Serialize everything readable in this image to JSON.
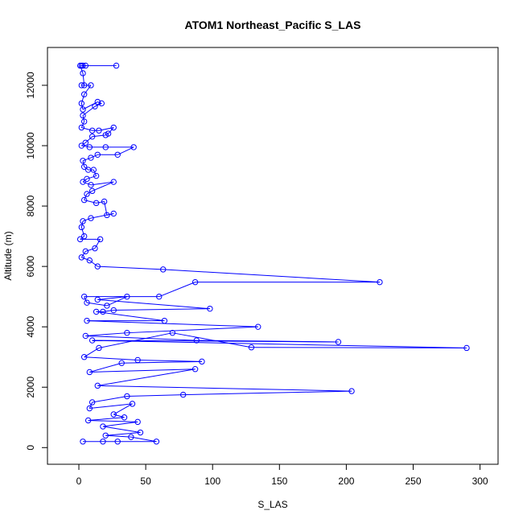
{
  "chart_data": {
    "type": "line",
    "title": "ATOM1 Northeast_Pacific S_LAS",
    "xlabel": "S_LAS",
    "ylabel": "Altitude (m)",
    "xlim": [
      -10,
      300
    ],
    "ylim": [
      0,
      12700
    ],
    "xticks": [
      0,
      50,
      100,
      150,
      200,
      250,
      300
    ],
    "yticks": [
      0,
      2000,
      4000,
      6000,
      8000,
      10000,
      12000
    ],
    "grid": false,
    "legend": "none",
    "marker": "open-circle",
    "series_color": "#0000ff",
    "series": [
      {
        "points": [
          [
            28,
            12650
          ],
          [
            5,
            12650
          ],
          [
            3,
            12650
          ],
          [
            2,
            12650
          ],
          [
            1,
            12650
          ],
          [
            3,
            12400
          ],
          [
            4,
            12000
          ],
          [
            2,
            12000
          ],
          [
            9,
            12000
          ],
          [
            4,
            11700
          ],
          [
            2,
            11400
          ],
          [
            3,
            11200
          ],
          [
            14,
            11450
          ],
          [
            17,
            11400
          ],
          [
            12,
            11300
          ],
          [
            3,
            11000
          ],
          [
            4,
            10800
          ],
          [
            2,
            10600
          ],
          [
            10,
            10500
          ],
          [
            15,
            10500
          ],
          [
            26,
            10600
          ],
          [
            22,
            10400
          ],
          [
            20,
            10350
          ],
          [
            10,
            10300
          ],
          [
            5,
            10100
          ],
          [
            2,
            10000
          ],
          [
            8,
            9950
          ],
          [
            20,
            9950
          ],
          [
            41,
            9950
          ],
          [
            29,
            9700
          ],
          [
            14,
            9700
          ],
          [
            9,
            9600
          ],
          [
            3,
            9500
          ],
          [
            4,
            9300
          ],
          [
            7,
            9200
          ],
          [
            11,
            9200
          ],
          [
            13,
            9000
          ],
          [
            6,
            8900
          ],
          [
            3,
            8800
          ],
          [
            9,
            8700
          ],
          [
            26,
            8800
          ],
          [
            10,
            8500
          ],
          [
            6,
            8400
          ],
          [
            4,
            8200
          ],
          [
            13,
            8100
          ],
          [
            19,
            8150
          ],
          [
            21,
            7700
          ],
          [
            26,
            7750
          ],
          [
            9,
            7600
          ],
          [
            3,
            7500
          ],
          [
            2,
            7300
          ],
          [
            4,
            7000
          ],
          [
            1,
            6900
          ],
          [
            16,
            6900
          ],
          [
            12,
            6600
          ],
          [
            5,
            6500
          ],
          [
            2,
            6300
          ],
          [
            8,
            6200
          ],
          [
            14,
            6000
          ],
          [
            63,
            5900
          ],
          [
            225,
            5480
          ],
          [
            87,
            5480
          ],
          [
            60,
            5000
          ],
          [
            4,
            5000
          ],
          [
            6,
            4800
          ],
          [
            21,
            4700
          ],
          [
            36,
            5000
          ],
          [
            14,
            4900
          ],
          [
            98,
            4600
          ],
          [
            26,
            4550
          ],
          [
            18,
            4500
          ],
          [
            13,
            4500
          ],
          [
            64,
            4200
          ],
          [
            6,
            4200
          ],
          [
            134,
            4000
          ],
          [
            36,
            3800
          ],
          [
            5,
            3700
          ],
          [
            88,
            3550
          ],
          [
            194,
            3500
          ],
          [
            10,
            3550
          ],
          [
            290,
            3300
          ],
          [
            129,
            3320
          ],
          [
            70,
            3800
          ],
          [
            15,
            3300
          ],
          [
            4,
            3000
          ],
          [
            44,
            2900
          ],
          [
            92,
            2850
          ],
          [
            32,
            2800
          ],
          [
            8,
            2500
          ],
          [
            87,
            2600
          ],
          [
            14,
            2050
          ],
          [
            204,
            1870
          ],
          [
            78,
            1750
          ],
          [
            36,
            1700
          ],
          [
            10,
            1500
          ],
          [
            8,
            1300
          ],
          [
            40,
            1450
          ],
          [
            26,
            1100
          ],
          [
            34,
            1000
          ],
          [
            7,
            900
          ],
          [
            44,
            850
          ],
          [
            18,
            700
          ],
          [
            46,
            500
          ],
          [
            20,
            400
          ],
          [
            39,
            350
          ],
          [
            58,
            200
          ],
          [
            29,
            200
          ],
          [
            18,
            200
          ],
          [
            3,
            200
          ]
        ]
      }
    ]
  }
}
